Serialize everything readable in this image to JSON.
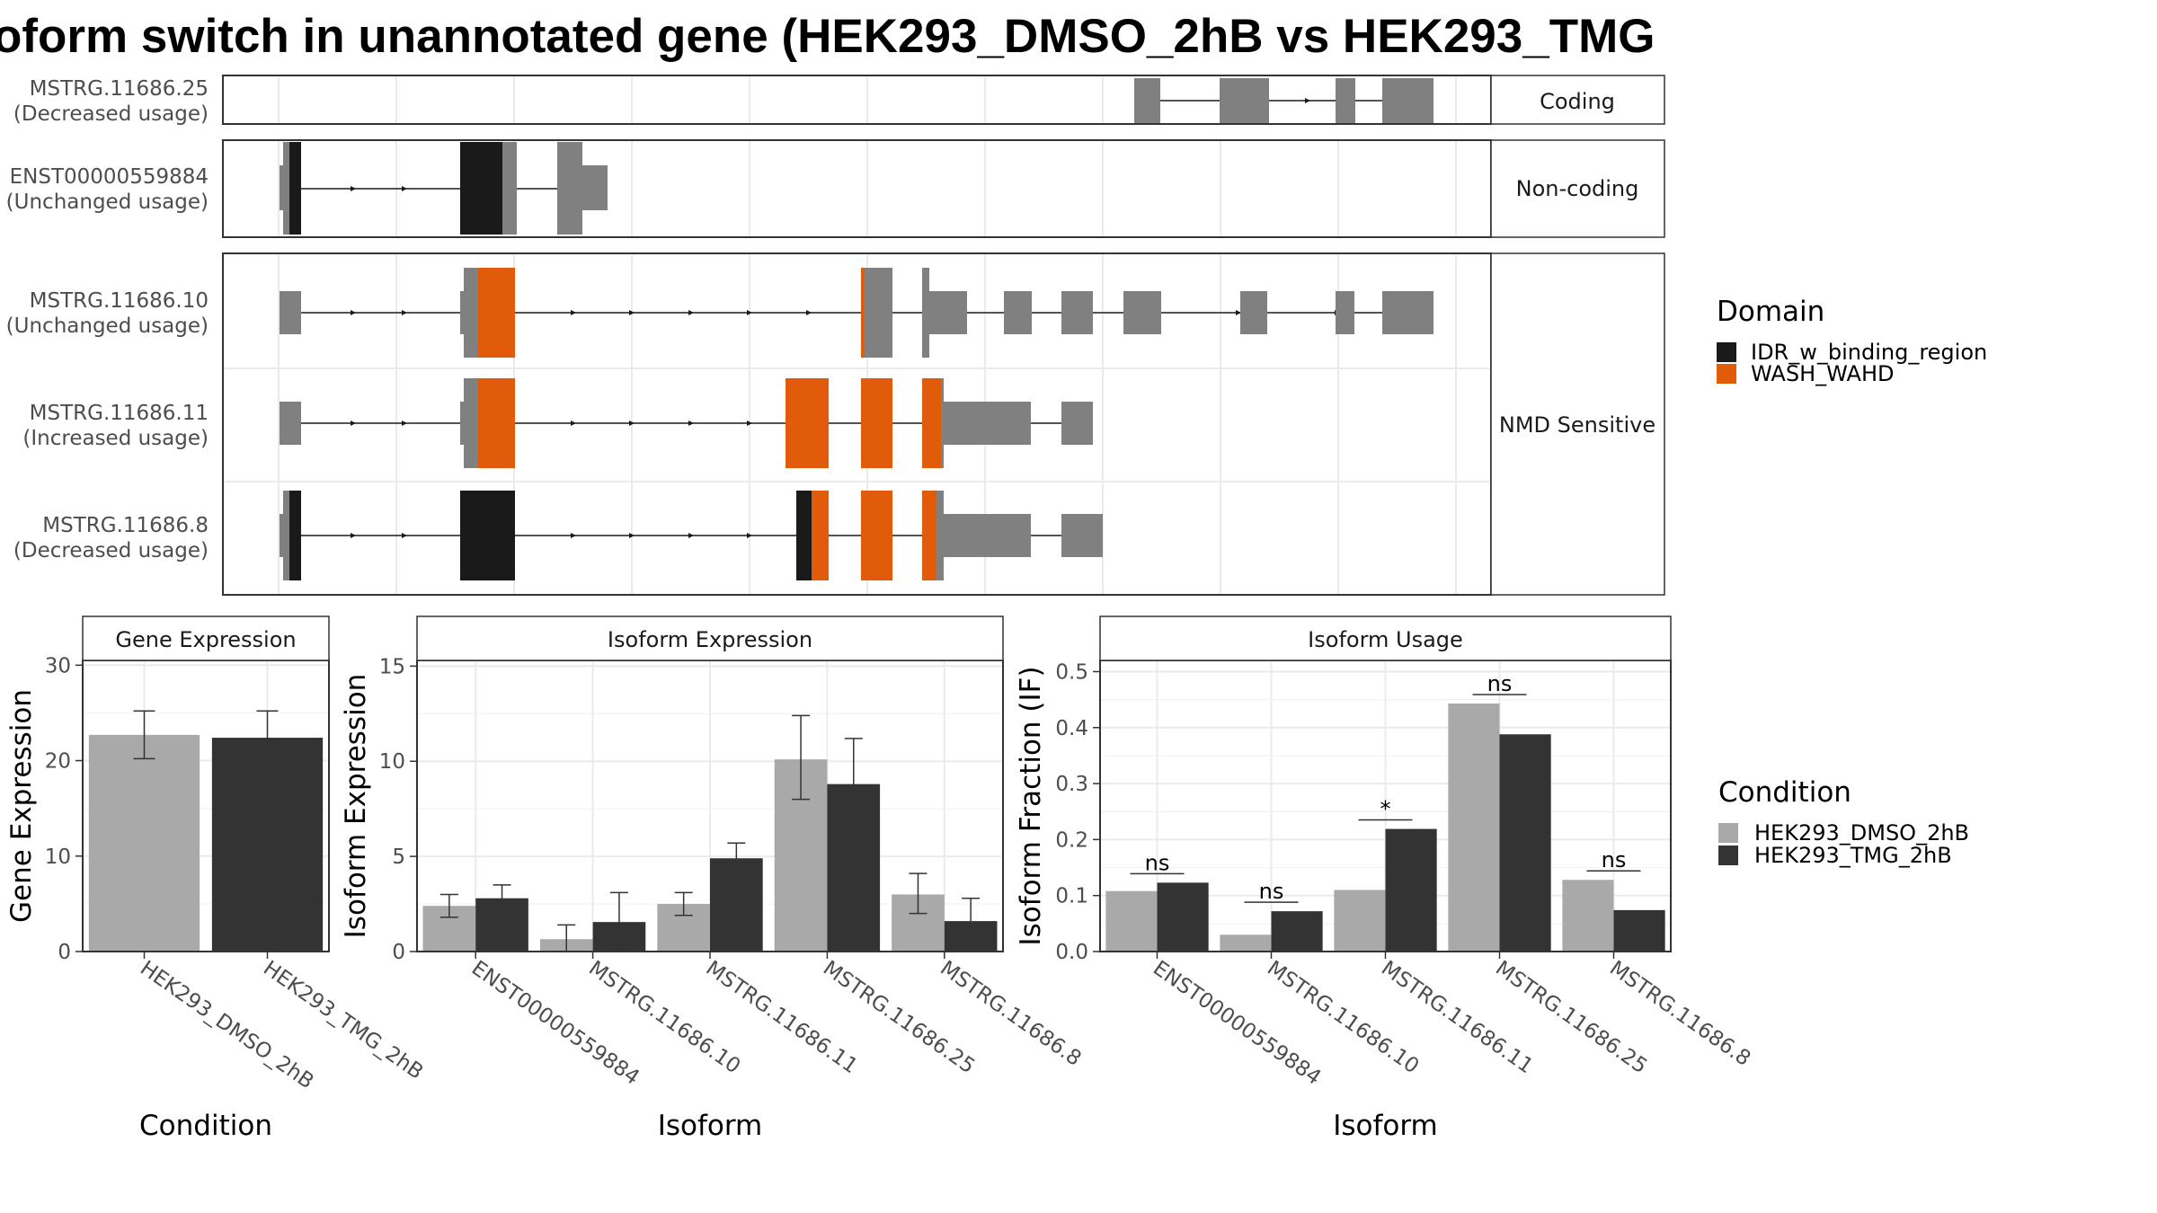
{
  "title": "oform switch in unannotated gene (HEK293_DMSO_2hB vs HEK293_TMG",
  "colors": {
    "exon_grey": "#808080",
    "idr": "#1a1a1a",
    "wash": "#e05c0a",
    "dmso": "#a9a9a9",
    "tmg": "#333333",
    "panel_border": "#333333",
    "grid": "#ebebeb"
  },
  "isoform_structure": {
    "groups": [
      {
        "label": "Coding",
        "isoforms": [
          {
            "name": "MSTRG.11686.25",
            "usage": "(Decreased usage)"
          }
        ]
      },
      {
        "label": "Non-coding",
        "isoforms": [
          {
            "name": "ENST00000559884",
            "usage": "(Unchanged usage)"
          }
        ]
      },
      {
        "label": "NMD Sensitive",
        "isoforms": [
          {
            "name": "MSTRG.11686.10",
            "usage": "(Unchanged usage)"
          },
          {
            "name": "MSTRG.11686.11",
            "usage": "(Increased usage)"
          },
          {
            "name": "MSTRG.11686.8",
            "usage": "(Decreased usage)"
          }
        ]
      }
    ]
  },
  "legends": {
    "domain": {
      "title": "Domain",
      "items": [
        {
          "label": "IDR_w_binding_region",
          "color": "#1a1a1a"
        },
        {
          "label": "WASH_WAHD",
          "color": "#e05c0a"
        }
      ]
    },
    "condition": {
      "title": "Condition",
      "items": [
        {
          "label": "HEK293_DMSO_2hB",
          "color": "#a9a9a9"
        },
        {
          "label": "HEK293_TMG_2hB",
          "color": "#333333"
        }
      ]
    }
  },
  "chart_data": [
    {
      "type": "bar",
      "title": "Gene Expression",
      "xlabel": "Condition",
      "ylabel": "Gene Expression",
      "categories": [
        "HEK293_DMSO_2hB",
        "HEK293_TMG_2hB"
      ],
      "series": [
        {
          "name": "HEK293_DMSO_2hB",
          "values": [
            22.7,
            null
          ]
        },
        {
          "name": "HEK293_TMG_2hB",
          "values": [
            null,
            22.4
          ]
        }
      ],
      "values": [
        22.7,
        22.4
      ],
      "error_low": [
        20.2,
        19.6
      ],
      "error_high": [
        25.2,
        25.2
      ],
      "ylim": [
        0,
        30.5
      ],
      "yticks": [
        0,
        10,
        20,
        30
      ]
    },
    {
      "type": "bar",
      "title": "Isoform Expression",
      "xlabel": "Isoform",
      "ylabel": "Isoform Expression",
      "categories": [
        "ENST00000559884",
        "MSTRG.11686.10",
        "MSTRG.11686.11",
        "MSTRG.11686.25",
        "MSTRG.11686.8"
      ],
      "series": [
        {
          "name": "HEK293_DMSO_2hB",
          "values": [
            2.4,
            0.65,
            2.5,
            10.1,
            3.0
          ],
          "error_low": [
            1.8,
            0.0,
            1.9,
            8.0,
            2.0
          ],
          "error_high": [
            3.0,
            1.4,
            3.1,
            12.4,
            4.1
          ]
        },
        {
          "name": "HEK293_TMG_2hB",
          "values": [
            2.8,
            1.55,
            4.9,
            8.8,
            1.6
          ],
          "error_low": [
            2.1,
            0.1,
            4.2,
            6.3,
            0.5
          ],
          "error_high": [
            3.5,
            3.1,
            5.7,
            11.2,
            2.8
          ]
        }
      ],
      "ylim": [
        0,
        15.3
      ],
      "yticks": [
        0,
        5,
        10,
        15
      ]
    },
    {
      "type": "bar",
      "title": "Isoform Usage",
      "xlabel": "Isoform",
      "ylabel": "Isoform Fraction (IF)",
      "categories": [
        "ENST00000559884",
        "MSTRG.11686.10",
        "MSTRG.11686.11",
        "MSTRG.11686.25",
        "MSTRG.11686.8"
      ],
      "series": [
        {
          "name": "HEK293_DMSO_2hB",
          "values": [
            0.108,
            0.03,
            0.11,
            0.443,
            0.128
          ]
        },
        {
          "name": "HEK293_TMG_2hB",
          "values": [
            0.123,
            0.072,
            0.219,
            0.388,
            0.074
          ]
        }
      ],
      "significance": [
        "ns",
        "ns",
        "*",
        "ns",
        "ns"
      ],
      "ylim": [
        0,
        0.52
      ],
      "yticks": [
        0.0,
        0.1,
        0.2,
        0.3,
        0.4,
        0.5
      ]
    }
  ]
}
